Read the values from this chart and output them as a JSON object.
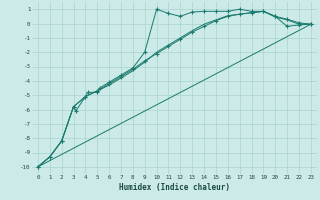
{
  "xlabel": "Humidex (Indice chaleur)",
  "ylabel": "",
  "bg_color": "#cceae7",
  "grid_color": "#aad4d0",
  "line_color": "#1a7a6e",
  "xlim": [
    -0.5,
    23.5
  ],
  "ylim": [
    -10.5,
    1.5
  ],
  "yticks": [
    1,
    0,
    -1,
    -2,
    -3,
    -4,
    -5,
    -6,
    -7,
    -8,
    -9,
    -10
  ],
  "xticks": [
    0,
    1,
    2,
    3,
    4,
    5,
    6,
    7,
    8,
    9,
    10,
    11,
    12,
    13,
    14,
    15,
    16,
    17,
    18,
    19,
    20,
    21,
    22,
    23
  ],
  "series1_x": [
    0,
    1,
    2,
    3,
    3.2,
    4,
    4.2,
    5,
    5.2,
    6,
    7,
    8,
    9,
    10,
    11,
    12,
    13,
    14,
    15,
    16,
    17,
    18,
    19,
    20,
    21,
    22,
    23
  ],
  "series1_y": [
    -10,
    -9.3,
    -8.2,
    -5.8,
    -6.1,
    -5.1,
    -4.8,
    -4.8,
    -4.5,
    -4.1,
    -3.6,
    -3.1,
    -2.0,
    1.0,
    0.7,
    0.5,
    0.8,
    0.85,
    0.85,
    0.85,
    1.0,
    0.85,
    0.85,
    0.5,
    -0.2,
    -0.1,
    -0.05
  ],
  "series2_x": [
    0,
    1,
    2,
    3,
    4,
    5,
    6,
    7,
    8,
    9,
    10,
    11,
    12,
    13,
    14,
    15,
    16,
    17,
    18,
    19,
    20,
    21,
    22,
    23
  ],
  "series2_y": [
    -10,
    -9.3,
    -8.2,
    -5.8,
    -5.1,
    -4.7,
    -4.2,
    -3.7,
    -3.2,
    -2.6,
    -2.1,
    -1.6,
    -1.1,
    -0.6,
    -0.2,
    0.2,
    0.5,
    0.65,
    0.75,
    0.85,
    0.5,
    0.3,
    0.05,
    -0.05
  ],
  "series3_x": [
    0,
    23
  ],
  "series3_y": [
    -10,
    -0.05
  ],
  "series4_x": [
    0,
    1,
    2,
    3,
    4,
    5,
    6,
    7,
    8,
    9,
    10,
    11,
    12,
    13,
    14,
    15,
    16,
    17,
    18,
    19,
    20,
    21,
    22,
    23
  ],
  "series4_y": [
    -10,
    -9.3,
    -8.2,
    -5.8,
    -5.1,
    -4.7,
    -4.3,
    -3.8,
    -3.3,
    -2.7,
    -2.0,
    -1.5,
    -1.0,
    -0.5,
    -0.05,
    0.25,
    0.55,
    0.65,
    0.75,
    0.85,
    0.45,
    0.25,
    -0.05,
    -0.05
  ]
}
